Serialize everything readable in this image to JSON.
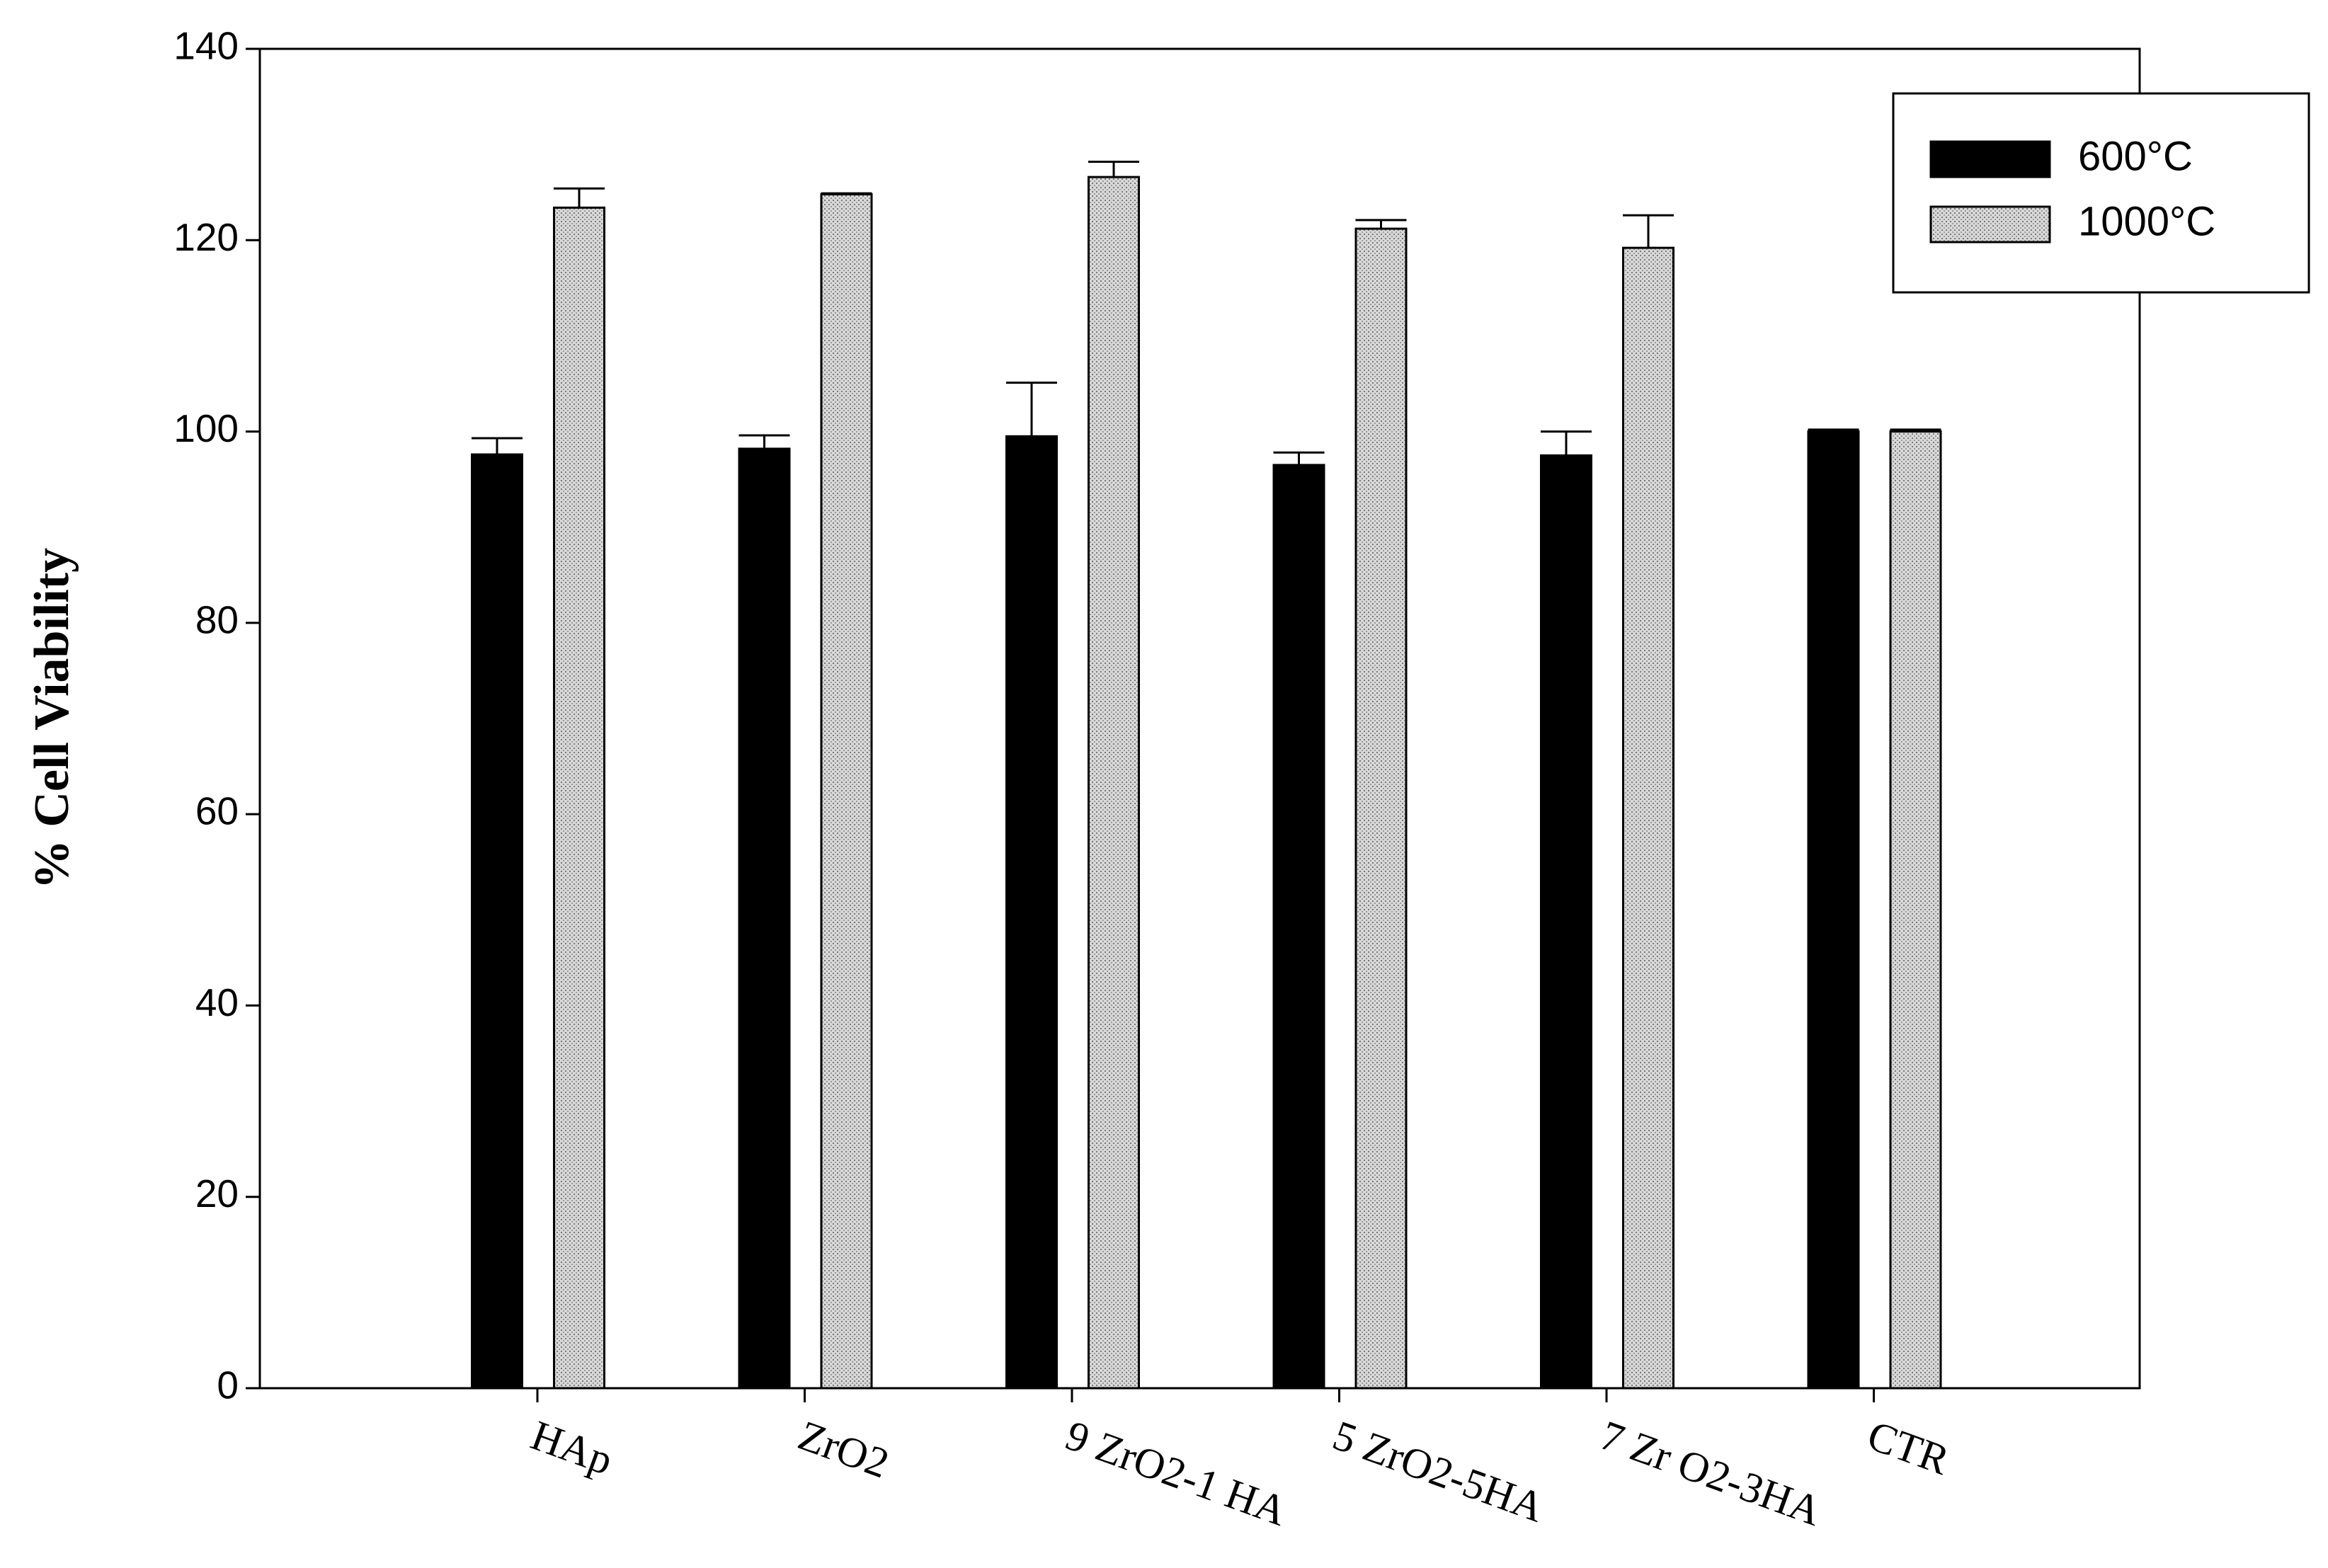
{
  "chart_data": {
    "type": "bar",
    "y_label": "% Cell Viability",
    "categories": [
      "HAp",
      "ZrO2",
      "9 ZrO2-1 HA",
      "5 ZrO2-5HA",
      "7 Zr O2-3HA",
      "CTR"
    ],
    "series": [
      {
        "name": "600°C",
        "color": "#000000",
        "values": [
          97.6,
          98.2,
          99.5,
          96.5,
          97.5,
          100
        ],
        "errors": [
          1.7,
          1.4,
          5.6,
          1.3,
          2.5,
          0.2
        ]
      },
      {
        "name": "1000°C",
        "color": "#c4c4c4",
        "values": [
          123.4,
          124.8,
          126.6,
          121.2,
          119.2,
          100
        ],
        "errors": [
          2.0,
          0.1,
          1.6,
          0.9,
          3.4,
          0.2
        ]
      }
    ],
    "ylim": [
      0,
      140
    ],
    "yticks": [
      0,
      20,
      40,
      60,
      80,
      100,
      120,
      140
    ],
    "legend": "upper right"
  }
}
